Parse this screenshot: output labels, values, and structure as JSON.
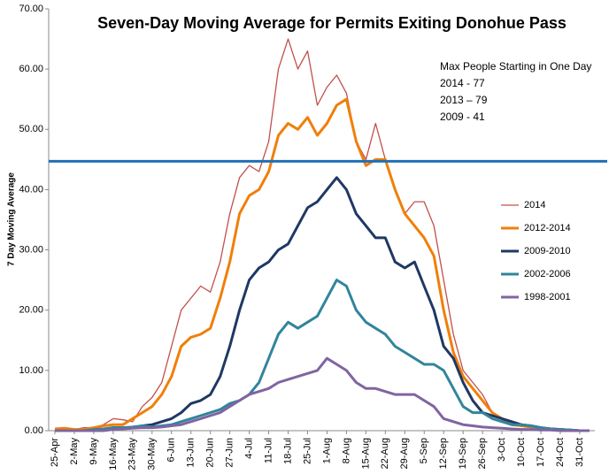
{
  "chart_data": {
    "type": "line",
    "title": "Seven-Day Moving Average for Permits Exiting Donohue Pass",
    "ylabel": "7 Day Moving Average",
    "annotations": [
      "Max People Starting in One Day",
      "2014 - 77",
      "2013 – 79",
      "2009 - 41"
    ],
    "categories": [
      "25-Apr",
      null,
      "2-May",
      null,
      "9-May",
      null,
      "16-May",
      null,
      "23-May",
      null,
      "30-May",
      null,
      "6-Jun",
      null,
      "13-Jun",
      null,
      "20-Jun",
      null,
      "27-Jun",
      null,
      "4-Jul",
      null,
      "11-Jul",
      null,
      "18-Jul",
      null,
      "25-Jul",
      null,
      "1-Aug",
      null,
      "8-Aug",
      null,
      "15-Aug",
      null,
      "22-Aug",
      null,
      "29-Aug",
      null,
      "5-Sep",
      null,
      "12-Sep",
      null,
      "19-Sep",
      null,
      "26-Sep",
      null,
      "3-Oct",
      null,
      "10-Oct",
      null,
      "17-Oct",
      null,
      "24-Oct",
      null,
      "31-Oct",
      null
    ],
    "series": [
      {
        "name": "2014",
        "color": "#c0504d",
        "line_width": 1.3,
        "values": [
          0,
          0.3,
          0.2,
          0.5,
          0.5,
          1,
          2,
          1.8,
          1.5,
          4,
          5.5,
          8,
          14,
          20,
          22,
          24,
          23,
          28,
          36,
          42,
          44,
          43,
          48,
          60,
          65,
          60,
          63,
          54,
          57,
          59,
          56,
          48,
          45,
          51,
          45,
          40,
          36,
          38,
          38,
          34,
          25,
          16,
          10,
          8,
          6,
          3,
          2,
          1.5,
          1,
          0.8,
          0.6,
          0.4,
          0.3,
          0.2,
          0,
          0
        ]
      },
      {
        "name": "2012-2014",
        "color": "#f07f09",
        "line_width": 3,
        "values": [
          0.3,
          0.4,
          0.2,
          0.2,
          0.5,
          0.8,
          1,
          1,
          2,
          3,
          4,
          6,
          9,
          14,
          15.5,
          16,
          17,
          22,
          28,
          36,
          39,
          40,
          43,
          49,
          51,
          50,
          52,
          49,
          51,
          54,
          55,
          48,
          44,
          45,
          45,
          40,
          36,
          34,
          32,
          29,
          20,
          13,
          9,
          7,
          5,
          3,
          2,
          1,
          0.8,
          0.6,
          0.5,
          0.3,
          0.2,
          0.1,
          0,
          0
        ]
      },
      {
        "name": "2009-2010",
        "color": "#1f3864",
        "line_width": 3,
        "values": [
          0,
          0,
          0,
          0,
          0,
          0.2,
          0.5,
          0.5,
          0.5,
          0.8,
          1,
          1.5,
          2,
          3,
          4.5,
          5,
          6,
          9,
          14,
          20,
          25,
          27,
          28,
          30,
          31,
          34,
          37,
          38,
          40,
          42,
          40,
          36,
          34,
          32,
          32,
          28,
          27,
          28,
          24,
          20,
          14,
          12,
          8,
          5,
          3,
          2.5,
          2,
          1.5,
          1,
          0.8,
          0.5,
          0.3,
          0.2,
          0.1,
          0,
          0
        ]
      },
      {
        "name": "2002-2006",
        "color": "#31859c",
        "line_width": 3,
        "values": [
          0,
          0,
          0,
          0,
          0.2,
          0.3,
          0.5,
          0.5,
          0.6,
          0.8,
          0.6,
          0.8,
          1,
          1.5,
          2,
          2.5,
          3,
          3.5,
          4.5,
          5,
          6,
          8,
          12,
          16,
          18,
          17,
          18,
          19,
          22,
          25,
          24,
          20,
          18,
          17,
          16,
          14,
          13,
          12,
          11,
          11,
          10,
          7,
          4,
          3,
          3,
          2,
          1.5,
          1,
          1,
          0.8,
          0.5,
          0.3,
          0.2,
          0.1,
          0,
          0
        ]
      },
      {
        "name": "1998-2001",
        "color": "#8064a2",
        "line_width": 3,
        "values": [
          0,
          0,
          0,
          0,
          0,
          0,
          0.2,
          0.3,
          0.4,
          0.5,
          0.5,
          0.6,
          0.8,
          1,
          1.5,
          2,
          2.5,
          3,
          4,
          5,
          6,
          6.5,
          7,
          8,
          8.5,
          9,
          9.5,
          10,
          12,
          11,
          10,
          8,
          7,
          7,
          6.5,
          6,
          6,
          6,
          5,
          4,
          2,
          1.5,
          1,
          0.8,
          0.6,
          0.5,
          0.4,
          0.3,
          0.2,
          0.2,
          0.1,
          0.1,
          0,
          0,
          0,
          0
        ]
      }
    ],
    "reference_line": {
      "value": 44.7,
      "color": "#1f6fb5"
    },
    "ylim": [
      0,
      70
    ],
    "yticks": [
      {
        "value": 0,
        "label": "0.00"
      },
      {
        "value": 10,
        "label": "10.00"
      },
      {
        "value": 20,
        "label": "20.00"
      },
      {
        "value": 30,
        "label": "30.00"
      },
      {
        "value": 40,
        "label": "40.00"
      },
      {
        "value": 50,
        "label": "50.00"
      },
      {
        "value": 60,
        "label": "60.00"
      },
      {
        "value": 70,
        "label": "70.00"
      }
    ],
    "legend": "right",
    "grid": false
  }
}
